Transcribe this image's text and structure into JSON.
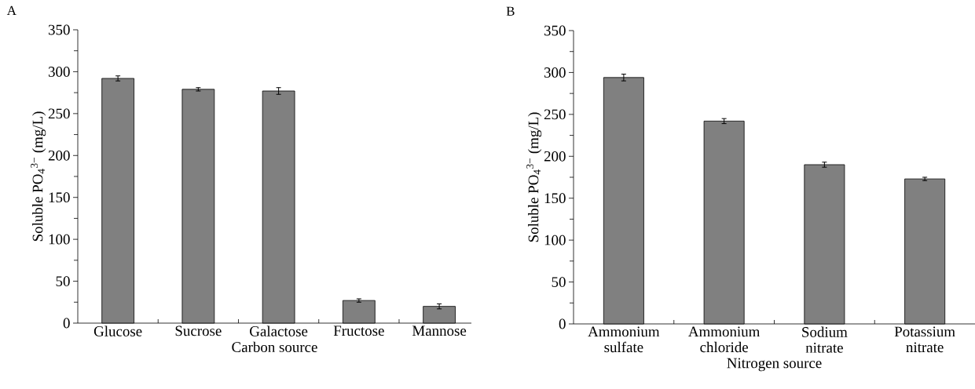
{
  "chart_data": [
    {
      "type": "bar",
      "title": "A",
      "xlabel": "Carbon source",
      "ylabel": "Soluble PO$_{4}$$^{3−}$ (mg/L)",
      "categories": [
        "Glucose",
        "Sucrose",
        "Galactose",
        "Fructose",
        "Mannose"
      ],
      "values": [
        292,
        279,
        277,
        27,
        20
      ],
      "errors": [
        3,
        2,
        4,
        2,
        3
      ],
      "color": "#808080",
      "ylim": [
        0,
        350
      ],
      "yticks": [
        0,
        50,
        100,
        150,
        200,
        250,
        300,
        350
      ]
    },
    {
      "type": "bar",
      "title": "B",
      "xlabel": "Nitrogen source",
      "ylabel": "Soluble PO$_{4}$$^{3−}$ (mg/L)",
      "categories": [
        "Ammonium sulfate",
        "Ammonium chloride",
        "Sodium nitrate",
        "Potassium nitrate"
      ],
      "values": [
        294,
        242,
        190,
        173
      ],
      "errors": [
        4,
        3,
        3,
        2
      ],
      "color": "#808080",
      "ylim": [
        0,
        350
      ],
      "yticks": [
        0,
        50,
        100,
        150,
        200,
        250,
        300,
        350
      ]
    }
  ]
}
